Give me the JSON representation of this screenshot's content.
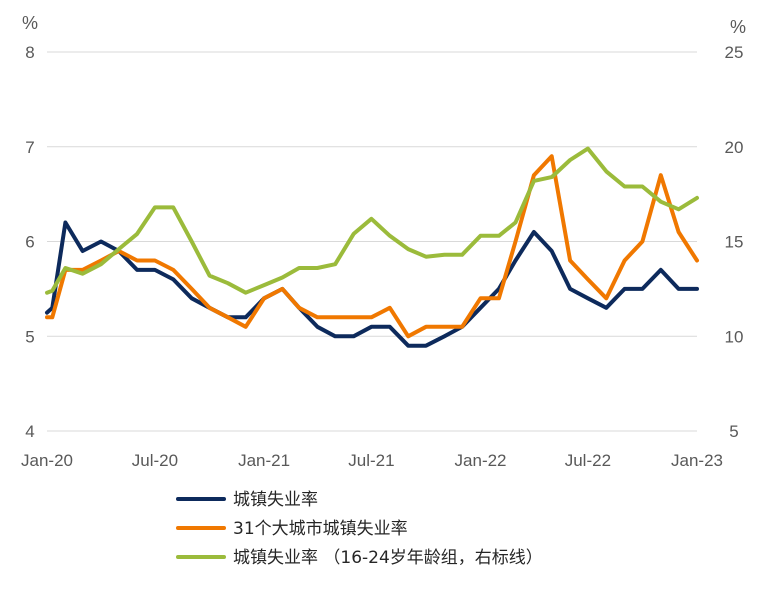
{
  "chart_data": {
    "type": "line",
    "title": "",
    "x": [
      "2020-01",
      "2020-02",
      "2020-03",
      "2020-04",
      "2020-05",
      "2020-06",
      "2020-07",
      "2020-08",
      "2020-09",
      "2020-10",
      "2020-11",
      "2020-12",
      "2021-01",
      "2021-02",
      "2021-03",
      "2021-04",
      "2021-05",
      "2021-06",
      "2021-07",
      "2021-08",
      "2021-09",
      "2021-10",
      "2021-11",
      "2021-12",
      "2022-01",
      "2022-02",
      "2022-03",
      "2022-04",
      "2022-05",
      "2022-06",
      "2022-07",
      "2022-08",
      "2022-09",
      "2022-10",
      "2022-11",
      "2022-12",
      "2023-01"
    ],
    "x_tick_labels": [
      "Jan-20",
      "Jul-20",
      "Jan-21",
      "Jul-21",
      "Jan-22",
      "Jul-22",
      "Jan-23"
    ],
    "y_left": {
      "unit": "%",
      "min": 4,
      "max": 8,
      "ticks": [
        4,
        5,
        6,
        7,
        8
      ]
    },
    "y_right": {
      "unit": "%",
      "min": 5,
      "max": 25,
      "ticks": [
        5,
        10,
        15,
        20,
        25
      ]
    },
    "grid": true,
    "legend_position": "bottom",
    "series": [
      {
        "name": "城镇失业率",
        "axis": "left",
        "color": "#0d2a5c",
        "x": [
          "2020-01",
          "2020-01-10",
          "2020-02",
          "2020-03",
          "2020-04",
          "2020-05",
          "2020-06",
          "2020-07",
          "2020-08",
          "2020-09",
          "2020-10",
          "2020-11",
          "2020-12",
          "2021-01",
          "2021-02",
          "2021-03",
          "2021-04",
          "2021-05",
          "2021-06",
          "2021-07",
          "2021-08",
          "2021-09",
          "2021-10",
          "2021-11",
          "2021-12",
          "2022-01",
          "2022-02",
          "2022-03",
          "2022-04",
          "2022-05",
          "2022-06",
          "2022-07",
          "2022-08",
          "2022-09",
          "2022-10",
          "2022-11",
          "2022-12",
          "2023-01"
        ],
        "values": [
          5.25,
          5.3,
          6.2,
          5.9,
          6.0,
          5.9,
          5.7,
          5.7,
          5.6,
          5.4,
          5.3,
          5.2,
          5.2,
          5.4,
          5.5,
          5.3,
          5.1,
          5.0,
          5.0,
          5.1,
          5.1,
          4.9,
          4.9,
          5.0,
          5.1,
          5.3,
          5.5,
          5.8,
          6.1,
          5.9,
          5.5,
          5.4,
          5.3,
          5.5,
          5.5,
          5.7,
          5.5,
          5.5
        ]
      },
      {
        "name": "31个大城市城镇失业率",
        "axis": "left",
        "color": "#f07800",
        "x": [
          "2020-01",
          "2020-01-10",
          "2020-02",
          "2020-03",
          "2020-04",
          "2020-05",
          "2020-06",
          "2020-07",
          "2020-08",
          "2020-09",
          "2020-10",
          "2020-11",
          "2020-12",
          "2021-01",
          "2021-02",
          "2021-03",
          "2021-04",
          "2021-05",
          "2021-06",
          "2021-07",
          "2021-08",
          "2021-09",
          "2021-10",
          "2021-11",
          "2021-12",
          "2022-01",
          "2022-02",
          "2022-03",
          "2022-04",
          "2022-05",
          "2022-06",
          "2022-07",
          "2022-08",
          "2022-09",
          "2022-10",
          "2022-11",
          "2022-12",
          "2023-01"
        ],
        "values": [
          5.2,
          5.2,
          5.7,
          5.7,
          5.8,
          5.9,
          5.8,
          5.8,
          5.7,
          5.5,
          5.3,
          5.2,
          5.1,
          5.4,
          5.5,
          5.3,
          5.2,
          5.2,
          5.2,
          5.2,
          5.3,
          5.0,
          5.1,
          5.1,
          5.1,
          5.4,
          5.4,
          6.0,
          6.7,
          6.9,
          5.8,
          5.6,
          5.4,
          5.8,
          6.0,
          6.7,
          6.1,
          5.8
        ]
      },
      {
        "name": "城镇失业率 （16-24岁年龄组，右标线）",
        "axis": "right",
        "color": "#9bbb3b",
        "x": [
          "2020-01",
          "2020-01-10",
          "2020-02",
          "2020-03",
          "2020-04",
          "2020-05",
          "2020-06",
          "2020-07",
          "2020-08",
          "2020-09",
          "2020-10",
          "2020-11",
          "2020-12",
          "2021-01",
          "2021-02",
          "2021-03",
          "2021-04",
          "2021-05",
          "2021-06",
          "2021-07",
          "2021-08",
          "2021-09",
          "2021-10",
          "2021-11",
          "2021-12",
          "2022-01",
          "2022-02",
          "2022-03",
          "2022-04",
          "2022-05",
          "2022-06",
          "2022-07",
          "2022-08",
          "2022-09",
          "2022-10",
          "2022-11",
          "2022-12",
          "2023-01"
        ],
        "values": [
          12.3,
          12.4,
          13.6,
          13.3,
          13.8,
          14.6,
          15.4,
          16.8,
          16.8,
          15.0,
          13.2,
          12.8,
          12.3,
          12.7,
          13.1,
          13.6,
          13.6,
          13.8,
          15.4,
          16.2,
          15.3,
          14.6,
          14.2,
          14.3,
          14.3,
          15.3,
          15.3,
          16.0,
          18.2,
          18.4,
          19.3,
          19.9,
          18.7,
          17.9,
          17.9,
          17.1,
          16.7,
          17.3
        ]
      }
    ]
  }
}
